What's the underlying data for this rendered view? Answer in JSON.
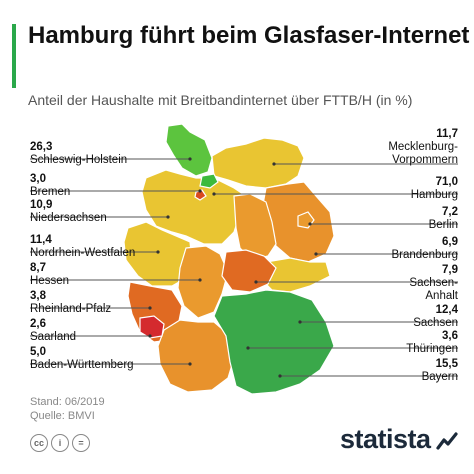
{
  "header": {
    "title": "Hamburg führt beim Glasfaser-Internet",
    "subtitle": "Anteil der Haushalte mit Breitbandinternet über FTTB/H (in %)"
  },
  "colors": {
    "accent": "#2aa84a",
    "line": "#555555"
  },
  "chart_data": {
    "type": "choropleth-map",
    "title": "Hamburg führt beim Glasfaser-Internet",
    "subtitle": "Anteil der Haushalte mit Breitbandinternet über FTTB/H (in %)",
    "regions": [
      {
        "name": "Schleswig-Holstein",
        "label": "26,3",
        "value": 26.3
      },
      {
        "name": "Bremen",
        "label": "3,0",
        "value": 3.0
      },
      {
        "name": "Niedersachsen",
        "label": "10,9",
        "value": 10.9
      },
      {
        "name": "Nordrhein-Westfalen",
        "label": "11,4",
        "value": 11.4
      },
      {
        "name": "Hessen",
        "label": "8,7",
        "value": 8.7
      },
      {
        "name": "Rheinland-Pfalz",
        "label": "3,8",
        "value": 3.8
      },
      {
        "name": "Saarland",
        "label": "2,6",
        "value": 2.6
      },
      {
        "name": "Baden-Württemberg",
        "label": "5,0",
        "value": 5.0
      },
      {
        "name": "Mecklenburg-Vorpommern",
        "label": "11,7",
        "value": 11.7
      },
      {
        "name": "Hamburg",
        "label": "71,0",
        "value": 71.0
      },
      {
        "name": "Berlin",
        "label": "7,2",
        "value": 7.2
      },
      {
        "name": "Brandenburg",
        "label": "6,9",
        "value": 6.9
      },
      {
        "name": "Sachsen-Anhalt",
        "label": "7,9",
        "value": 7.9
      },
      {
        "name": "Sachsen",
        "label": "12,4",
        "value": 12.4
      },
      {
        "name": "Thüringen",
        "label": "3,6",
        "value": 3.6
      },
      {
        "name": "Bayern",
        "label": "15,5",
        "value": 15.5
      }
    ],
    "legend": "none"
  },
  "footer": {
    "stand": "Stand: 06/2019",
    "quelle": "Quelle: BMVI",
    "logo": "statista",
    "cc_icons": [
      "cc",
      "i",
      "="
    ]
  }
}
